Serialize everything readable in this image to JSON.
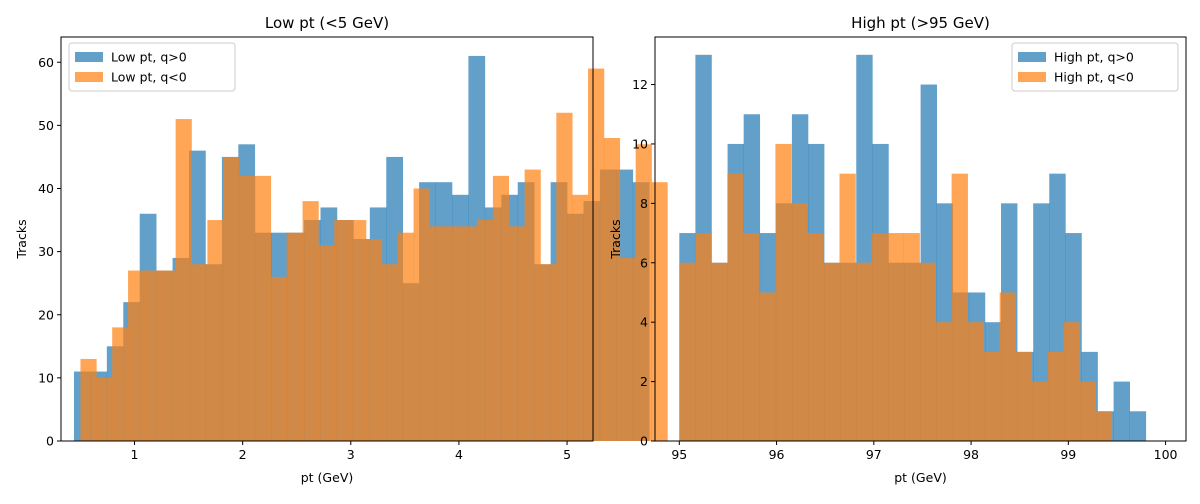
{
  "colors": {
    "q_pos": "#1f77b4",
    "q_neg": "#ff7f0e"
  },
  "chart_data": [
    {
      "type": "histogram",
      "title": "Low pt (<5 GeV)",
      "xlabel": "pt (GeV)",
      "ylabel": "Tracks",
      "xlim": [
        0.32,
        5.24
      ],
      "ylim": [
        0,
        64
      ],
      "xticks": [
        1,
        2,
        3,
        4,
        5
      ],
      "yticks": [
        0,
        10,
        20,
        30,
        40,
        50,
        60
      ],
      "legend_position": "upper left",
      "series": [
        {
          "name": "Low pt, q>0",
          "color": "#1f77b4",
          "opacity": 0.7,
          "bin_start": 0.44,
          "bin_width": 0.152,
          "values": [
            11,
            11,
            15,
            22,
            36,
            27,
            29,
            46,
            28,
            45,
            47,
            33,
            33,
            33,
            35,
            37,
            35,
            32,
            37,
            45,
            25,
            41,
            41,
            39,
            61,
            37,
            39,
            41,
            28,
            41,
            36,
            38,
            43,
            43,
            41
          ]
        },
        {
          "name": "Low pt, q<0",
          "color": "#ff7f0e",
          "opacity": 0.7,
          "bin_start": 0.5,
          "bin_width": 0.1467,
          "values": [
            13,
            10,
            18,
            27,
            27,
            27,
            51,
            28,
            35,
            45,
            42,
            42,
            26,
            33,
            38,
            31,
            35,
            35,
            32,
            28,
            33,
            40,
            34,
            34,
            34,
            35,
            42,
            34,
            43,
            28,
            52,
            39,
            59,
            48,
            29,
            47,
            41
          ]
        }
      ]
    },
    {
      "type": "histogram",
      "title": "High pt (>95 GeV)",
      "xlabel": "pt (GeV)",
      "ylabel": "Tracks",
      "xlim": [
        94.75,
        100.21
      ],
      "ylim": [
        0,
        13.6
      ],
      "xticks": [
        95,
        96,
        97,
        98,
        99,
        100
      ],
      "yticks": [
        0,
        2,
        4,
        6,
        8,
        10,
        12
      ],
      "legend_position": "upper right",
      "series": [
        {
          "name": "High pt, q>0",
          "color": "#1f77b4",
          "opacity": 0.7,
          "bin_start": 95.0,
          "bin_width": 0.1654,
          "values": [
            7,
            13,
            6,
            10,
            11,
            7,
            8,
            11,
            10,
            6,
            6,
            13,
            10,
            6,
            6,
            12,
            8,
            5,
            5,
            4,
            8,
            3,
            8,
            9,
            7,
            3,
            1,
            2,
            1
          ]
        },
        {
          "name": "High pt, q<0",
          "color": "#ff7f0e",
          "opacity": 0.7,
          "bin_start": 95.0,
          "bin_width": 0.1647,
          "values": [
            6,
            7,
            6,
            9,
            7,
            5,
            10,
            8,
            7,
            6,
            9,
            6,
            7,
            7,
            7,
            6,
            4,
            9,
            4,
            3,
            5,
            3,
            2,
            3,
            4,
            2,
            1
          ]
        }
      ]
    }
  ]
}
